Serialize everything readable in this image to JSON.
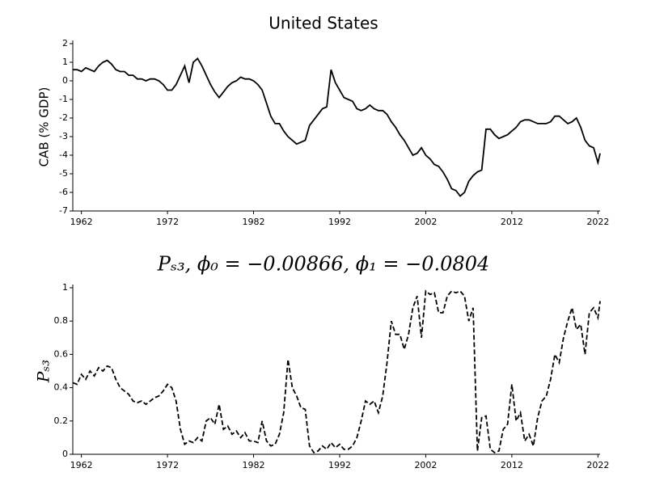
{
  "chart_data": [
    {
      "type": "line",
      "title": "United States",
      "y_label": "CAB (% GDP)",
      "x": [
        1961,
        1961.5,
        1962,
        1962.5,
        1963,
        1963.5,
        1964,
        1964.5,
        1965,
        1965.5,
        1966,
        1966.5,
        1967,
        1967.5,
        1968,
        1968.5,
        1969,
        1969.5,
        1970,
        1970.5,
        1971,
        1971.5,
        1972,
        1972.5,
        1973,
        1973.5,
        1974,
        1974.5,
        1975,
        1975.5,
        1976,
        1976.5,
        1977,
        1977.5,
        1978,
        1978.5,
        1979,
        1979.5,
        1980,
        1980.5,
        1981,
        1981.5,
        1982,
        1982.5,
        1983,
        1983.5,
        1984,
        1984.5,
        1985,
        1985.5,
        1986,
        1986.5,
        1987,
        1987.5,
        1988,
        1988.5,
        1989,
        1989.5,
        1990,
        1990.5,
        1991,
        1991.5,
        1992,
        1992.5,
        1993,
        1993.5,
        1994,
        1994.5,
        1995,
        1995.5,
        1996,
        1996.5,
        1997,
        1997.5,
        1998,
        1998.5,
        1999,
        1999.5,
        2000,
        2000.5,
        2001,
        2001.5,
        2002,
        2002.5,
        2003,
        2003.5,
        2004,
        2004.5,
        2005,
        2005.5,
        2006,
        2006.5,
        2007,
        2007.5,
        2008,
        2008.5,
        2009,
        2009.5,
        2010,
        2010.5,
        2011,
        2011.5,
        2012,
        2012.5,
        2013,
        2013.5,
        2014,
        2014.5,
        2015,
        2015.5,
        2016,
        2016.5,
        2017,
        2017.5,
        2018,
        2018.5,
        2019,
        2019.5,
        2020,
        2020.5,
        2021,
        2021.5,
        2022,
        2022.25
      ],
      "series": [
        {
          "color": "#000000",
          "linestyle": "solid",
          "values": [
            0.6,
            0.6,
            0.5,
            0.7,
            0.6,
            0.5,
            0.8,
            1.0,
            1.1,
            0.9,
            0.6,
            0.5,
            0.5,
            0.3,
            0.3,
            0.1,
            0.1,
            0.0,
            0.1,
            0.1,
            0.0,
            -0.2,
            -0.5,
            -0.5,
            -0.2,
            0.3,
            0.8,
            -0.1,
            1.0,
            1.2,
            0.8,
            0.3,
            -0.2,
            -0.6,
            -0.9,
            -0.6,
            -0.3,
            -0.1,
            0.0,
            0.2,
            0.1,
            0.1,
            0.0,
            -0.2,
            -0.5,
            -1.2,
            -1.9,
            -2.3,
            -2.3,
            -2.7,
            -3.0,
            -3.2,
            -3.4,
            -3.3,
            -3.2,
            -2.4,
            -2.1,
            -1.8,
            -1.5,
            -1.4,
            0.6,
            -0.1,
            -0.5,
            -0.9,
            -1.0,
            -1.1,
            -1.5,
            -1.6,
            -1.5,
            -1.3,
            -1.5,
            -1.6,
            -1.6,
            -1.8,
            -2.2,
            -2.5,
            -2.9,
            -3.2,
            -3.6,
            -4.0,
            -3.9,
            -3.6,
            -4.0,
            -4.2,
            -4.5,
            -4.6,
            -4.9,
            -5.3,
            -5.8,
            -5.9,
            -6.2,
            -6.0,
            -5.4,
            -5.1,
            -4.9,
            -4.8,
            -2.6,
            -2.6,
            -2.9,
            -3.1,
            -3.0,
            -2.9,
            -2.7,
            -2.5,
            -2.2,
            -2.1,
            -2.1,
            -2.2,
            -2.3,
            -2.3,
            -2.3,
            -2.2,
            -1.9,
            -1.9,
            -2.1,
            -2.3,
            -2.2,
            -2.0,
            -2.5,
            -3.2,
            -3.5,
            -3.6,
            -4.4,
            -3.9
          ]
        }
      ],
      "xlim": [
        1961,
        2022.25
      ],
      "xticks": [
        1962,
        1972,
        1982,
        1992,
        2002,
        2012,
        2022
      ],
      "ylim": [
        -7,
        2
      ],
      "yticks": [
        2,
        1,
        0,
        -1,
        -2,
        -3,
        -4,
        -5,
        -6,
        -7
      ]
    },
    {
      "type": "line",
      "title": "Pₛ₃, ϕ₀ = −0.00866, ϕ₁ = −0.0804",
      "y_label": "Pₛ₃",
      "x": [
        1961,
        1961.5,
        1962,
        1962.5,
        1963,
        1963.5,
        1964,
        1964.5,
        1965,
        1965.5,
        1966,
        1966.5,
        1967,
        1967.5,
        1968,
        1968.5,
        1969,
        1969.5,
        1970,
        1970.5,
        1971,
        1971.5,
        1972,
        1972.5,
        1973,
        1973.5,
        1974,
        1974.5,
        1975,
        1975.5,
        1976,
        1976.5,
        1977,
        1977.5,
        1978,
        1978.5,
        1979,
        1979.5,
        1980,
        1980.5,
        1981,
        1981.5,
        1982,
        1982.5,
        1983,
        1983.5,
        1984,
        1984.5,
        1985,
        1985.5,
        1986,
        1986.5,
        1987,
        1987.5,
        1988,
        1988.5,
        1989,
        1989.5,
        1990,
        1990.5,
        1991,
        1991.5,
        1992,
        1992.5,
        1993,
        1993.5,
        1994,
        1994.5,
        1995,
        1995.5,
        1996,
        1996.5,
        1997,
        1997.5,
        1998,
        1998.5,
        1999,
        1999.5,
        2000,
        2000.5,
        2001,
        2001.5,
        2002,
        2002.5,
        2003,
        2003.5,
        2004,
        2004.5,
        2005,
        2005.5,
        2006,
        2006.5,
        2007,
        2007.5,
        2008,
        2008.5,
        2009,
        2009.5,
        2010,
        2010.5,
        2011,
        2011.5,
        2012,
        2012.5,
        2013,
        2013.5,
        2014,
        2014.5,
        2015,
        2015.5,
        2016,
        2016.5,
        2017,
        2017.5,
        2018,
        2018.5,
        2019,
        2019.5,
        2020,
        2020.5,
        2021,
        2021.5,
        2022,
        2022.25
      ],
      "series": [
        {
          "color": "#000000",
          "linestyle": "dashed",
          "values": [
            0.43,
            0.42,
            0.48,
            0.45,
            0.5,
            0.47,
            0.52,
            0.5,
            0.53,
            0.52,
            0.45,
            0.4,
            0.38,
            0.36,
            0.32,
            0.31,
            0.32,
            0.3,
            0.32,
            0.34,
            0.35,
            0.38,
            0.42,
            0.4,
            0.32,
            0.15,
            0.06,
            0.08,
            0.07,
            0.1,
            0.08,
            0.2,
            0.22,
            0.18,
            0.3,
            0.15,
            0.17,
            0.12,
            0.14,
            0.1,
            0.13,
            0.08,
            0.08,
            0.07,
            0.2,
            0.08,
            0.05,
            0.06,
            0.12,
            0.25,
            0.57,
            0.4,
            0.35,
            0.28,
            0.27,
            0.05,
            0.01,
            0.02,
            0.05,
            0.03,
            0.07,
            0.04,
            0.06,
            0.03,
            0.03,
            0.05,
            0.1,
            0.2,
            0.32,
            0.3,
            0.32,
            0.25,
            0.35,
            0.55,
            0.8,
            0.72,
            0.72,
            0.63,
            0.72,
            0.88,
            0.95,
            0.7,
            0.98,
            0.96,
            0.97,
            0.85,
            0.85,
            0.95,
            0.98,
            0.97,
            0.98,
            0.95,
            0.8,
            0.88,
            0.02,
            0.22,
            0.23,
            0.03,
            0.01,
            0.02,
            0.15,
            0.18,
            0.42,
            0.2,
            0.25,
            0.08,
            0.12,
            0.05,
            0.22,
            0.32,
            0.35,
            0.45,
            0.6,
            0.55,
            0.7,
            0.8,
            0.88,
            0.75,
            0.78,
            0.6,
            0.85,
            0.88,
            0.82,
            0.92
          ]
        }
      ],
      "xlim": [
        1961,
        2022.25
      ],
      "xticks": [
        1962,
        1972,
        1982,
        1992,
        2002,
        2012,
        2022
      ],
      "ylim": [
        0,
        1
      ],
      "yticks": [
        0,
        0.2,
        0.4,
        0.6,
        0.8,
        1
      ]
    }
  ]
}
